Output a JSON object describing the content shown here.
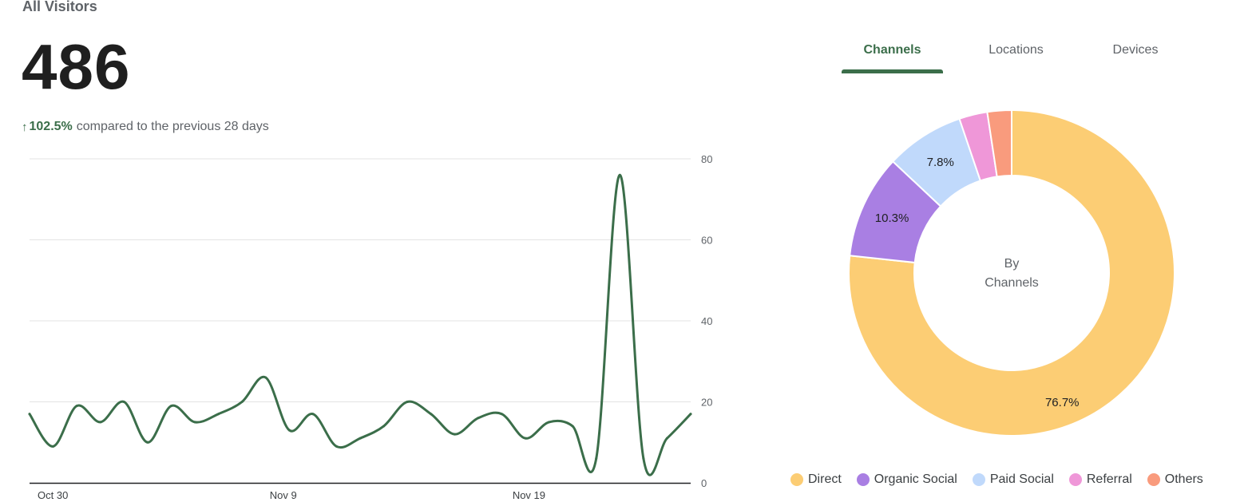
{
  "header": {
    "title": "All Visitors",
    "total": "486",
    "delta_arrow": "↑",
    "delta_pct": "102.5%",
    "delta_text": "compared to the previous 28 days"
  },
  "tabs": [
    {
      "label": "Channels",
      "active": true
    },
    {
      "label": "Locations",
      "active": false
    },
    {
      "label": "Devices",
      "active": false
    }
  ],
  "colors": {
    "accent": "#3b6e4a",
    "line": "#3b6e4a",
    "direct": "#fccd74",
    "organic_social": "#a97fe3",
    "paid_social": "#c0d9fb",
    "referral": "#ef97d8",
    "others": "#f99b7d"
  },
  "chart_data": [
    {
      "type": "line",
      "x_tick_labels": [
        "Oct 30",
        "Nov 9",
        "Nov 19"
      ],
      "y_ticks": [
        0,
        20,
        40,
        60,
        80
      ],
      "ylim": [
        0,
        80
      ],
      "grid": true,
      "series": [
        {
          "values": [
            17,
            9,
            19,
            15,
            20,
            10,
            19,
            15,
            17,
            20,
            26,
            13,
            17,
            9,
            11,
            14,
            20,
            17,
            12,
            16,
            17,
            11,
            15,
            14,
            6,
            76,
            6,
            11,
            17
          ]
        }
      ]
    },
    {
      "type": "pie",
      "center_label": [
        "By",
        "Channels"
      ],
      "slices": [
        {
          "label": "Direct",
          "value": 76.7,
          "display": "76.7%",
          "color": "#fccd74"
        },
        {
          "label": "Organic Social",
          "value": 10.3,
          "display": "10.3%",
          "color": "#a97fe3"
        },
        {
          "label": "Paid Social",
          "value": 7.8,
          "display": "7.8%",
          "color": "#c0d9fb"
        },
        {
          "label": "Referral",
          "value": 2.8,
          "display": "",
          "color": "#ef97d8"
        },
        {
          "label": "Others",
          "value": 2.4,
          "display": "",
          "color": "#f99b7d"
        }
      ]
    }
  ]
}
